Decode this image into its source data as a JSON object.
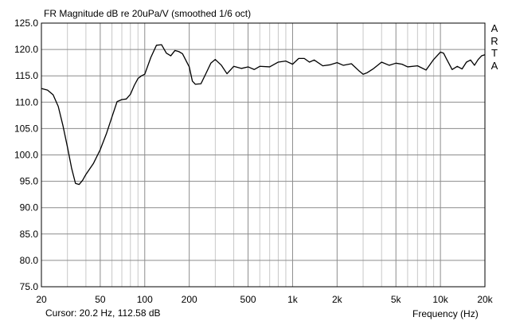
{
  "chart_data": {
    "type": "line",
    "title": "FR Magnitude dB re 20uPa/V (smoothed 1/6 oct)",
    "xlabel": "Frequency (Hz)",
    "ylabel": "",
    "x_scale": "log",
    "xlim": [
      20,
      20000
    ],
    "ylim": [
      75,
      125
    ],
    "x_ticks": [
      {
        "value": 20,
        "label": "20"
      },
      {
        "value": 50,
        "label": "50"
      },
      {
        "value": 100,
        "label": "100"
      },
      {
        "value": 200,
        "label": "200"
      },
      {
        "value": 500,
        "label": "500"
      },
      {
        "value": 1000,
        "label": "1k"
      },
      {
        "value": 2000,
        "label": "2k"
      },
      {
        "value": 5000,
        "label": "5k"
      },
      {
        "value": 10000,
        "label": "10k"
      },
      {
        "value": 20000,
        "label": "20k"
      }
    ],
    "y_ticks": [
      "125.0",
      "120.0",
      "115.0",
      "110.0",
      "105.0",
      "100.0",
      "95.0",
      "90.0",
      "85.0",
      "80.0",
      "75.0"
    ],
    "grid": true,
    "series": [
      {
        "color": "#000000",
        "x": [
          20,
          22,
          24,
          26,
          28,
          30,
          32,
          34,
          36,
          38,
          40,
          45,
          50,
          55,
          60,
          65,
          70,
          75,
          80,
          85,
          90,
          95,
          100,
          110,
          120,
          130,
          140,
          150,
          160,
          170,
          180,
          200,
          210,
          220,
          240,
          260,
          280,
          300,
          330,
          360,
          400,
          450,
          500,
          550,
          600,
          700,
          800,
          900,
          1000,
          1100,
          1200,
          1300,
          1400,
          1600,
          1800,
          2000,
          2200,
          2500,
          2800,
          3000,
          3200,
          3500,
          4000,
          4500,
          5000,
          5500,
          6000,
          7000,
          8000,
          9000,
          10000,
          10500,
          11000,
          12000,
          13000,
          14000,
          15000,
          16000,
          17000,
          18000,
          19000,
          20000
        ],
        "y": [
          112.6,
          112.3,
          111.4,
          109.2,
          105.5,
          101.5,
          97.5,
          94.6,
          94.4,
          95.2,
          96.3,
          98.4,
          101.0,
          104.0,
          107.2,
          110.1,
          110.5,
          110.6,
          111.5,
          113.2,
          114.5,
          115.0,
          115.3,
          118.5,
          120.8,
          120.9,
          119.3,
          118.8,
          119.8,
          119.6,
          119.2,
          116.7,
          114.0,
          113.4,
          113.5,
          115.5,
          117.4,
          118.1,
          117.0,
          115.4,
          116.8,
          116.4,
          116.7,
          116.2,
          116.8,
          116.7,
          117.6,
          117.8,
          117.2,
          118.3,
          118.3,
          117.6,
          118.0,
          116.9,
          117.1,
          117.5,
          117.0,
          117.3,
          116.0,
          115.3,
          115.6,
          116.3,
          117.6,
          117.0,
          117.4,
          117.2,
          116.7,
          116.9,
          116.1,
          118.1,
          119.5,
          119.3,
          118.2,
          116.2,
          116.8,
          116.3,
          117.6,
          118.0,
          117.0,
          118.1,
          118.8,
          119.0
        ]
      }
    ],
    "cursor_readout": "Cursor: 20.2 Hz, 112.58 dB",
    "logo_letters": [
      "A",
      "R",
      "T",
      "A"
    ]
  }
}
